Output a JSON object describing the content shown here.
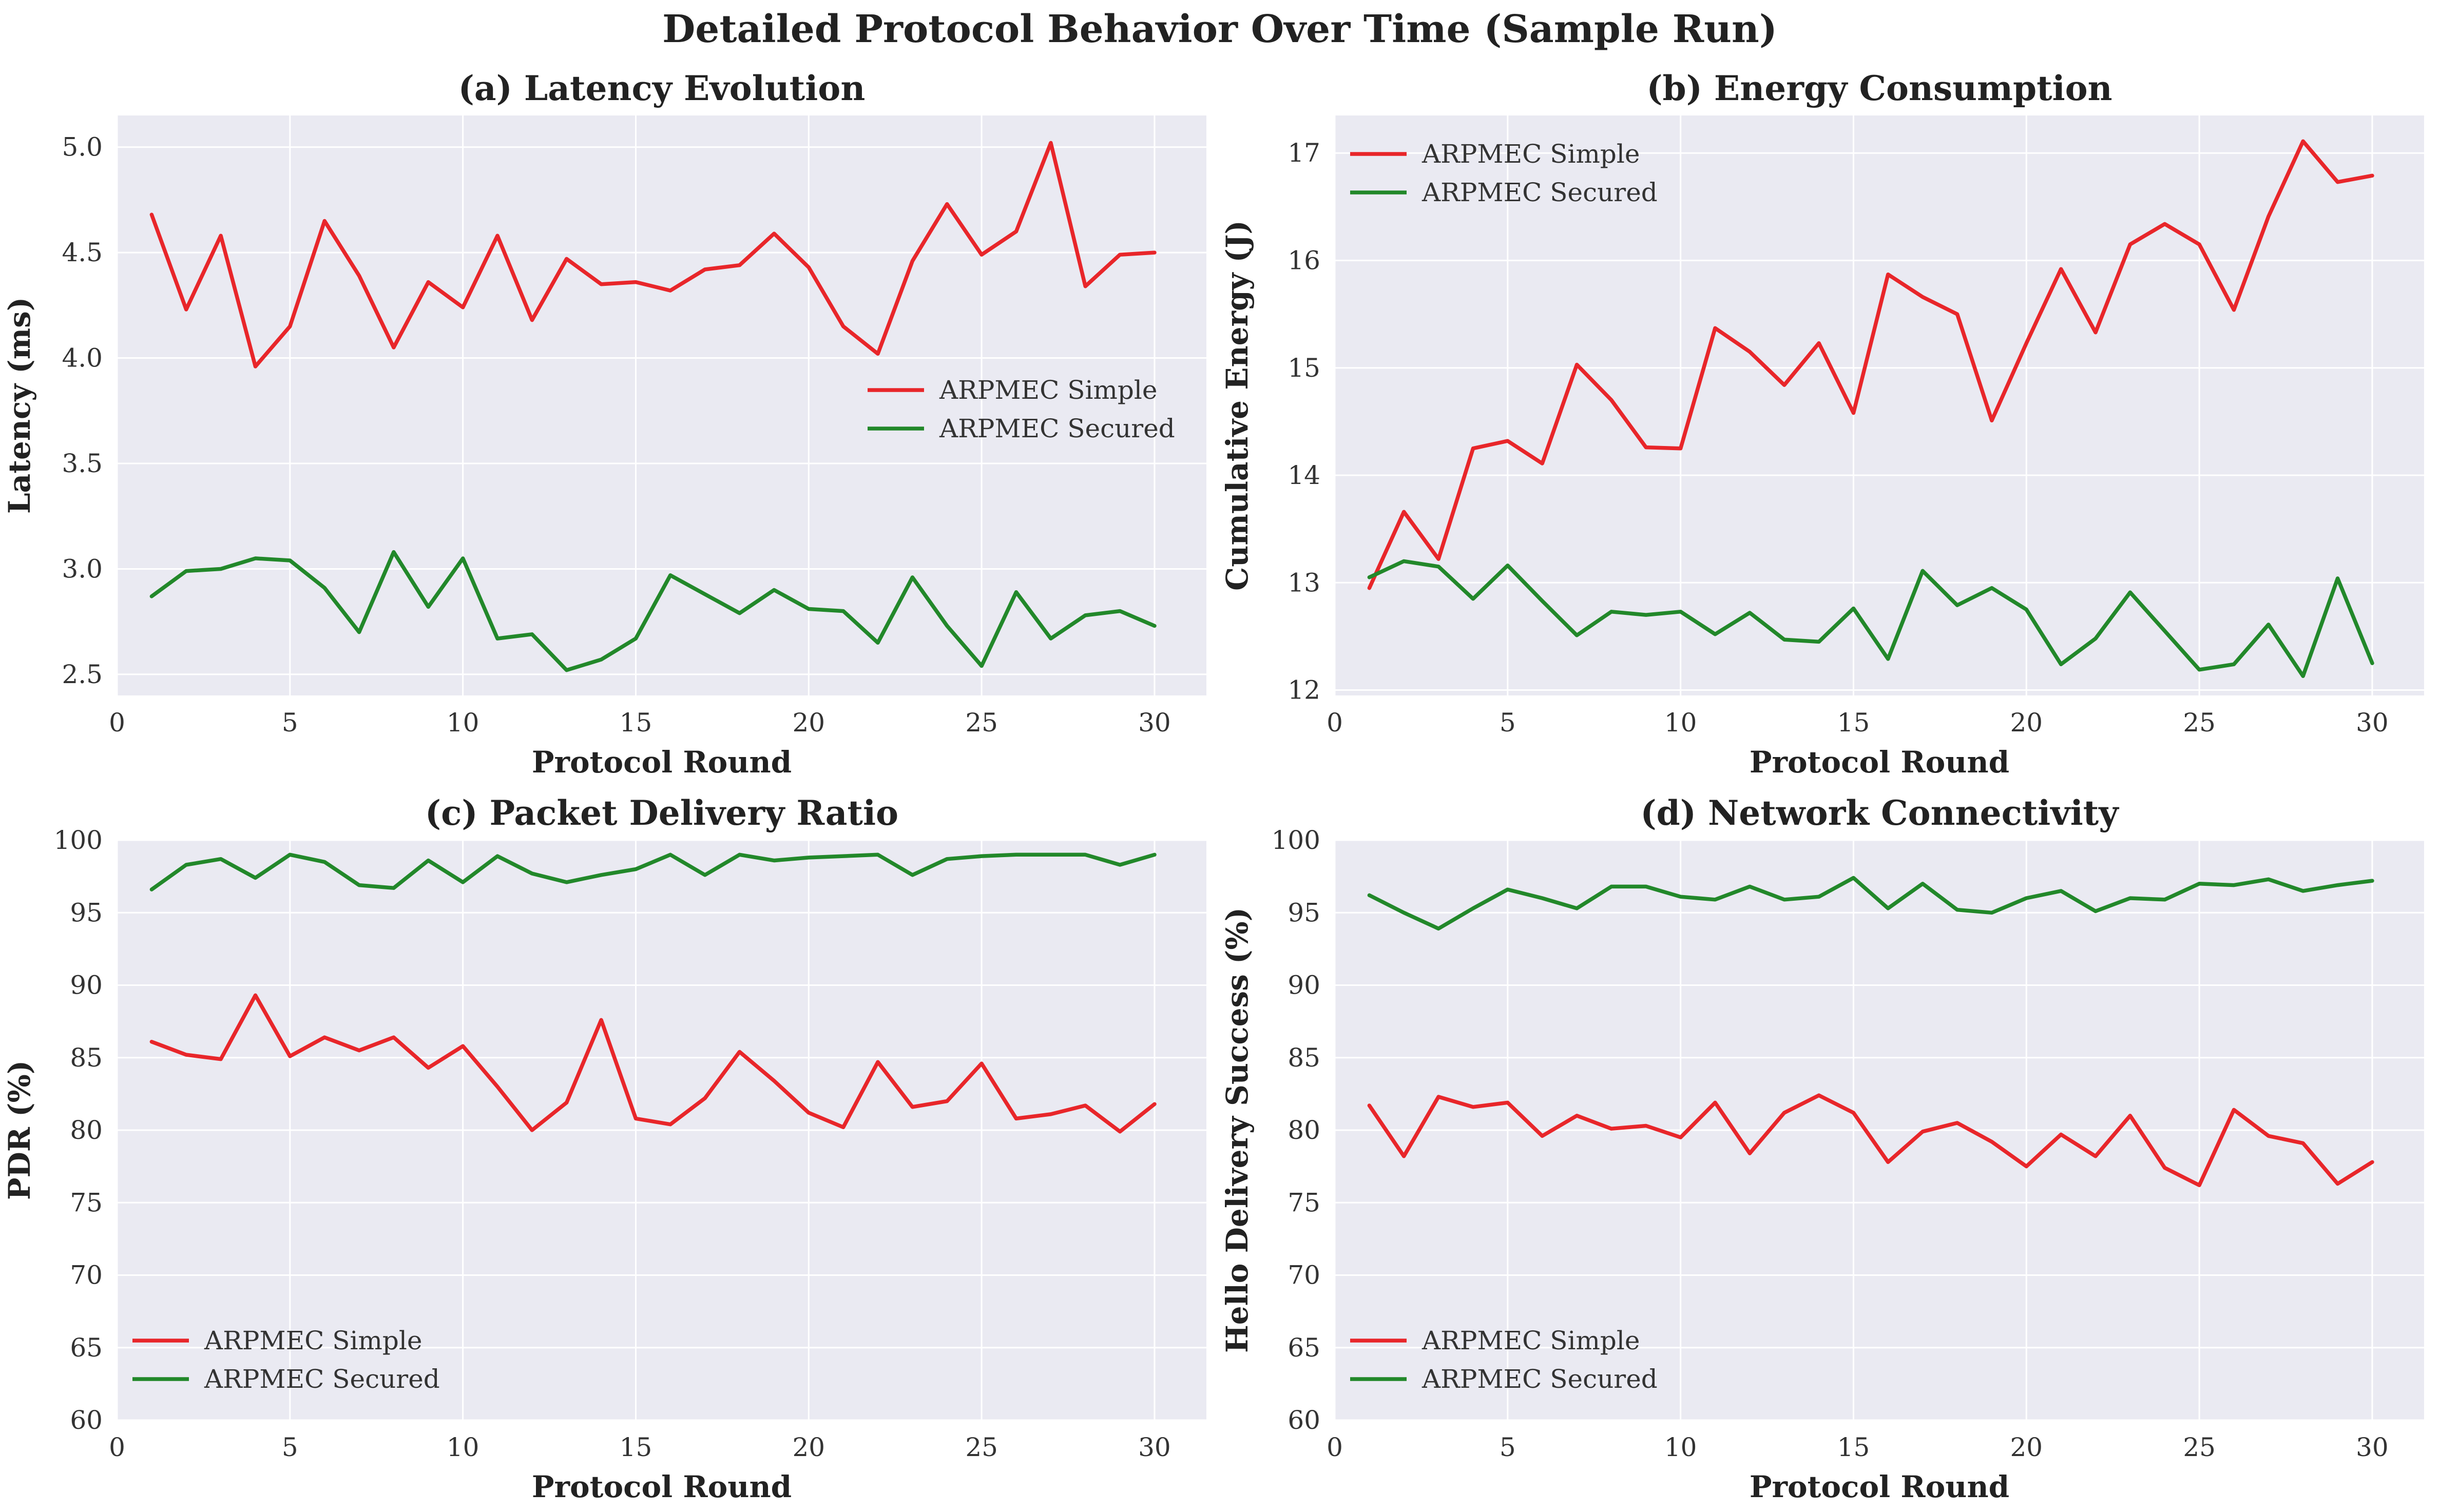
{
  "figure": {
    "title": "Detailed Protocol Behavior Over Time (Sample Run)",
    "background": "#ffffff",
    "axes_background": "#eaeaf2",
    "grid_color": "#ffffff",
    "text_color": "#222222"
  },
  "chart_data": [
    {
      "type": "line",
      "title": "(a) Latency Evolution",
      "xlabel": "Protocol Round",
      "ylabel": "Latency (ms)",
      "xlim": [
        0,
        31.5
      ],
      "ylim": [
        2.4,
        5.15
      ],
      "xticks": [
        0,
        5,
        10,
        15,
        20,
        25,
        30
      ],
      "yticks": [
        2.5,
        3.0,
        3.5,
        4.0,
        4.5,
        5.0
      ],
      "ytick_labels": [
        "2.5",
        "3.0",
        "3.5",
        "4.0",
        "4.5",
        "5.0"
      ],
      "grid": true,
      "legend_position": "center-right",
      "x": [
        1,
        2,
        3,
        4,
        5,
        6,
        7,
        8,
        9,
        10,
        11,
        12,
        13,
        14,
        15,
        16,
        17,
        18,
        19,
        20,
        21,
        22,
        23,
        24,
        25,
        26,
        27,
        28,
        29,
        30
      ],
      "series": [
        {
          "name": "ARPMEC Simple",
          "color": "#e8262a",
          "values": [
            4.68,
            4.23,
            4.58,
            3.96,
            4.15,
            4.65,
            4.39,
            4.05,
            4.36,
            4.24,
            4.58,
            4.18,
            4.47,
            4.35,
            4.36,
            4.32,
            4.42,
            4.44,
            4.59,
            4.43,
            4.15,
            4.02,
            4.46,
            4.73,
            4.49,
            4.6,
            5.02,
            4.34,
            4.49,
            4.5
          ]
        },
        {
          "name": "ARPMEC Secured",
          "color": "#22882a",
          "values": [
            2.87,
            2.99,
            3.0,
            3.05,
            3.04,
            2.91,
            2.7,
            3.08,
            2.82,
            3.05,
            2.67,
            2.69,
            2.52,
            2.57,
            2.67,
            2.97,
            2.88,
            2.79,
            2.9,
            2.81,
            2.8,
            2.65,
            2.96,
            2.73,
            2.54,
            2.89,
            2.67,
            2.78,
            2.8,
            2.73
          ]
        }
      ]
    },
    {
      "type": "line",
      "title": "(b) Energy Consumption",
      "xlabel": "Protocol Round",
      "ylabel": "Cumulative Energy (J)",
      "xlim": [
        0,
        31.5
      ],
      "ylim": [
        11.95,
        17.35
      ],
      "xticks": [
        0,
        5,
        10,
        15,
        20,
        25,
        30
      ],
      "yticks": [
        12,
        13,
        14,
        15,
        16,
        17
      ],
      "ytick_labels": [
        "12",
        "13",
        "14",
        "15",
        "16",
        "17"
      ],
      "grid": true,
      "legend_position": "upper-left",
      "x": [
        1,
        2,
        3,
        4,
        5,
        6,
        7,
        8,
        9,
        10,
        11,
        12,
        13,
        14,
        15,
        16,
        17,
        18,
        19,
        20,
        21,
        22,
        23,
        24,
        25,
        26,
        27,
        28,
        29,
        30
      ],
      "series": [
        {
          "name": "ARPMEC Simple",
          "color": "#e8262a",
          "values": [
            12.95,
            13.66,
            13.22,
            14.25,
            14.32,
            14.11,
            15.03,
            14.7,
            14.26,
            14.25,
            15.37,
            15.15,
            14.84,
            15.23,
            14.58,
            15.87,
            15.66,
            15.5,
            14.51,
            15.23,
            15.92,
            15.33,
            16.15,
            16.34,
            16.15,
            15.54,
            16.41,
            17.11,
            16.73,
            16.79
          ]
        },
        {
          "name": "ARPMEC Secured",
          "color": "#22882a",
          "values": [
            13.05,
            13.2,
            13.15,
            12.85,
            13.16,
            12.83,
            12.51,
            12.73,
            12.7,
            12.73,
            12.52,
            12.72,
            12.47,
            12.45,
            12.76,
            12.29,
            13.11,
            12.79,
            12.95,
            12.75,
            12.24,
            12.48,
            12.91,
            12.55,
            12.19,
            12.24,
            12.61,
            12.13,
            13.04,
            12.25
          ]
        }
      ]
    },
    {
      "type": "line",
      "title": "(c) Packet Delivery Ratio",
      "xlabel": "Protocol Round",
      "ylabel": "PDR (%)",
      "xlim": [
        0,
        31.5
      ],
      "ylim": [
        60,
        100
      ],
      "xticks": [
        0,
        5,
        10,
        15,
        20,
        25,
        30
      ],
      "yticks": [
        60,
        65,
        70,
        75,
        80,
        85,
        90,
        95,
        100
      ],
      "ytick_labels": [
        "60",
        "65",
        "70",
        "75",
        "80",
        "85",
        "90",
        "95",
        "100"
      ],
      "grid": true,
      "legend_position": "lower-left",
      "x": [
        1,
        2,
        3,
        4,
        5,
        6,
        7,
        8,
        9,
        10,
        11,
        12,
        13,
        14,
        15,
        16,
        17,
        18,
        19,
        20,
        21,
        22,
        23,
        24,
        25,
        26,
        27,
        28,
        29,
        30
      ],
      "series": [
        {
          "name": "ARPMEC Simple",
          "color": "#e8262a",
          "values": [
            86.1,
            85.2,
            84.9,
            89.3,
            85.1,
            86.4,
            85.5,
            86.4,
            84.3,
            85.8,
            83.0,
            80.0,
            81.9,
            87.6,
            80.8,
            80.4,
            82.2,
            85.4,
            83.4,
            81.2,
            80.2,
            84.7,
            81.6,
            82.0,
            84.6,
            80.8,
            81.1,
            81.7,
            79.9,
            81.8
          ]
        },
        {
          "name": "ARPMEC Secured",
          "color": "#22882a",
          "values": [
            96.6,
            98.3,
            98.7,
            97.4,
            99.0,
            98.5,
            96.9,
            96.7,
            98.6,
            97.1,
            98.9,
            97.7,
            97.1,
            97.6,
            98.0,
            99.0,
            97.6,
            99.0,
            98.6,
            98.8,
            98.9,
            99.0,
            97.6,
            98.7,
            98.9,
            99.0,
            99.0,
            99.0,
            98.3,
            99.0
          ]
        }
      ]
    },
    {
      "type": "line",
      "title": "(d) Network Connectivity",
      "xlabel": "Protocol Round",
      "ylabel": "Hello Delivery Success (%)",
      "xlim": [
        0,
        31.5
      ],
      "ylim": [
        60,
        100
      ],
      "xticks": [
        0,
        5,
        10,
        15,
        20,
        25,
        30
      ],
      "yticks": [
        60,
        65,
        70,
        75,
        80,
        85,
        90,
        95,
        100
      ],
      "ytick_labels": [
        "60",
        "65",
        "70",
        "75",
        "80",
        "85",
        "90",
        "95",
        "100"
      ],
      "grid": true,
      "legend_position": "lower-left",
      "x": [
        1,
        2,
        3,
        4,
        5,
        6,
        7,
        8,
        9,
        10,
        11,
        12,
        13,
        14,
        15,
        16,
        17,
        18,
        19,
        20,
        21,
        22,
        23,
        24,
        25,
        26,
        27,
        28,
        29,
        30
      ],
      "series": [
        {
          "name": "ARPMEC Simple",
          "color": "#e8262a",
          "values": [
            81.7,
            78.2,
            82.3,
            81.6,
            81.9,
            79.6,
            81.0,
            80.1,
            80.3,
            79.5,
            81.9,
            78.4,
            81.2,
            82.4,
            81.2,
            77.8,
            79.9,
            80.5,
            79.2,
            77.5,
            79.7,
            78.2,
            81.0,
            77.4,
            76.2,
            81.4,
            79.6,
            79.1,
            76.3,
            77.8
          ]
        },
        {
          "name": "ARPMEC Secured",
          "color": "#22882a",
          "values": [
            96.2,
            95.0,
            93.9,
            95.3,
            96.6,
            96.0,
            95.3,
            96.8,
            96.8,
            96.1,
            95.9,
            96.8,
            95.9,
            96.1,
            97.4,
            95.3,
            97.0,
            95.2,
            95.0,
            96.0,
            96.5,
            95.1,
            96.0,
            95.9,
            97.0,
            96.9,
            97.3,
            96.5,
            96.9,
            97.2
          ]
        }
      ]
    }
  ]
}
